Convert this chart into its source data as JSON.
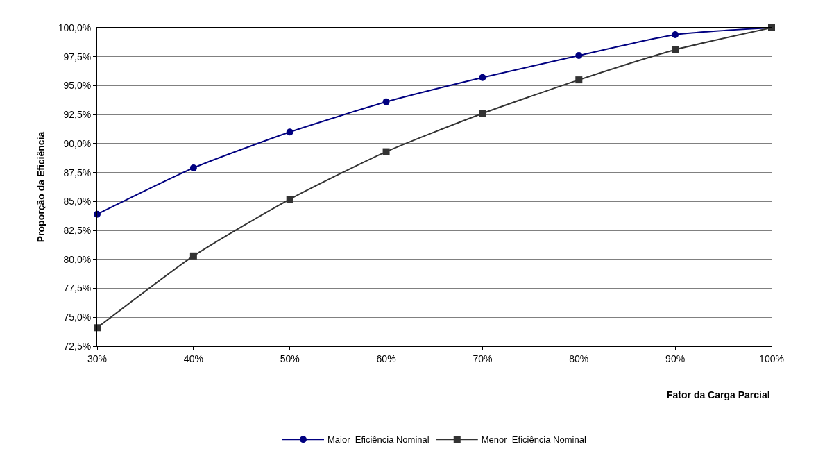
{
  "chart_data": {
    "type": "line",
    "xlabel": "Fator da Carga Parcial",
    "ylabel": "Proporção da Eficiência",
    "x": [
      30,
      40,
      50,
      60,
      70,
      80,
      90,
      100
    ],
    "series": [
      {
        "name": "Maior  Eficiência Nominal",
        "color": "#000080",
        "marker": "circle",
        "values": [
          83.9,
          87.9,
          91.0,
          93.6,
          95.7,
          97.6,
          99.4,
          100
        ]
      },
      {
        "name": "Menor  Eficiência Nominal",
        "color": "#333333",
        "marker": "square",
        "values": [
          74.1,
          80.3,
          85.2,
          89.3,
          92.6,
          95.5,
          98.1,
          100
        ]
      }
    ],
    "xlim": [
      30,
      100
    ],
    "xticks": [
      {
        "value": 30,
        "label": "30%"
      },
      {
        "value": 40,
        "label": "40%"
      },
      {
        "value": 50,
        "label": "50%"
      },
      {
        "value": 60,
        "label": "60%"
      },
      {
        "value": 70,
        "label": "70%"
      },
      {
        "value": 80,
        "label": "80%"
      },
      {
        "value": 90,
        "label": "90%"
      },
      {
        "value": 100,
        "label": "100%"
      }
    ],
    "ylim": [
      72.5,
      100
    ],
    "yticks": [
      {
        "value": 72.5,
        "label": "72,5%"
      },
      {
        "value": 75,
        "label": "75,0%"
      },
      {
        "value": 77.5,
        "label": "77,5%"
      },
      {
        "value": 80,
        "label": "80,0%"
      },
      {
        "value": 82.5,
        "label": "82,5%"
      },
      {
        "value": 85,
        "label": "85,0%"
      },
      {
        "value": 87.5,
        "label": "87,5%"
      },
      {
        "value": 90,
        "label": "90,0%"
      },
      {
        "value": 92.5,
        "label": "92,5%"
      },
      {
        "value": 95,
        "label": "95,0%"
      },
      {
        "value": 97.5,
        "label": "97,5%"
      },
      {
        "value": 100,
        "label": "100,0%"
      }
    ],
    "grid": "y",
    "legend": "bottom",
    "line_style": "solid"
  }
}
